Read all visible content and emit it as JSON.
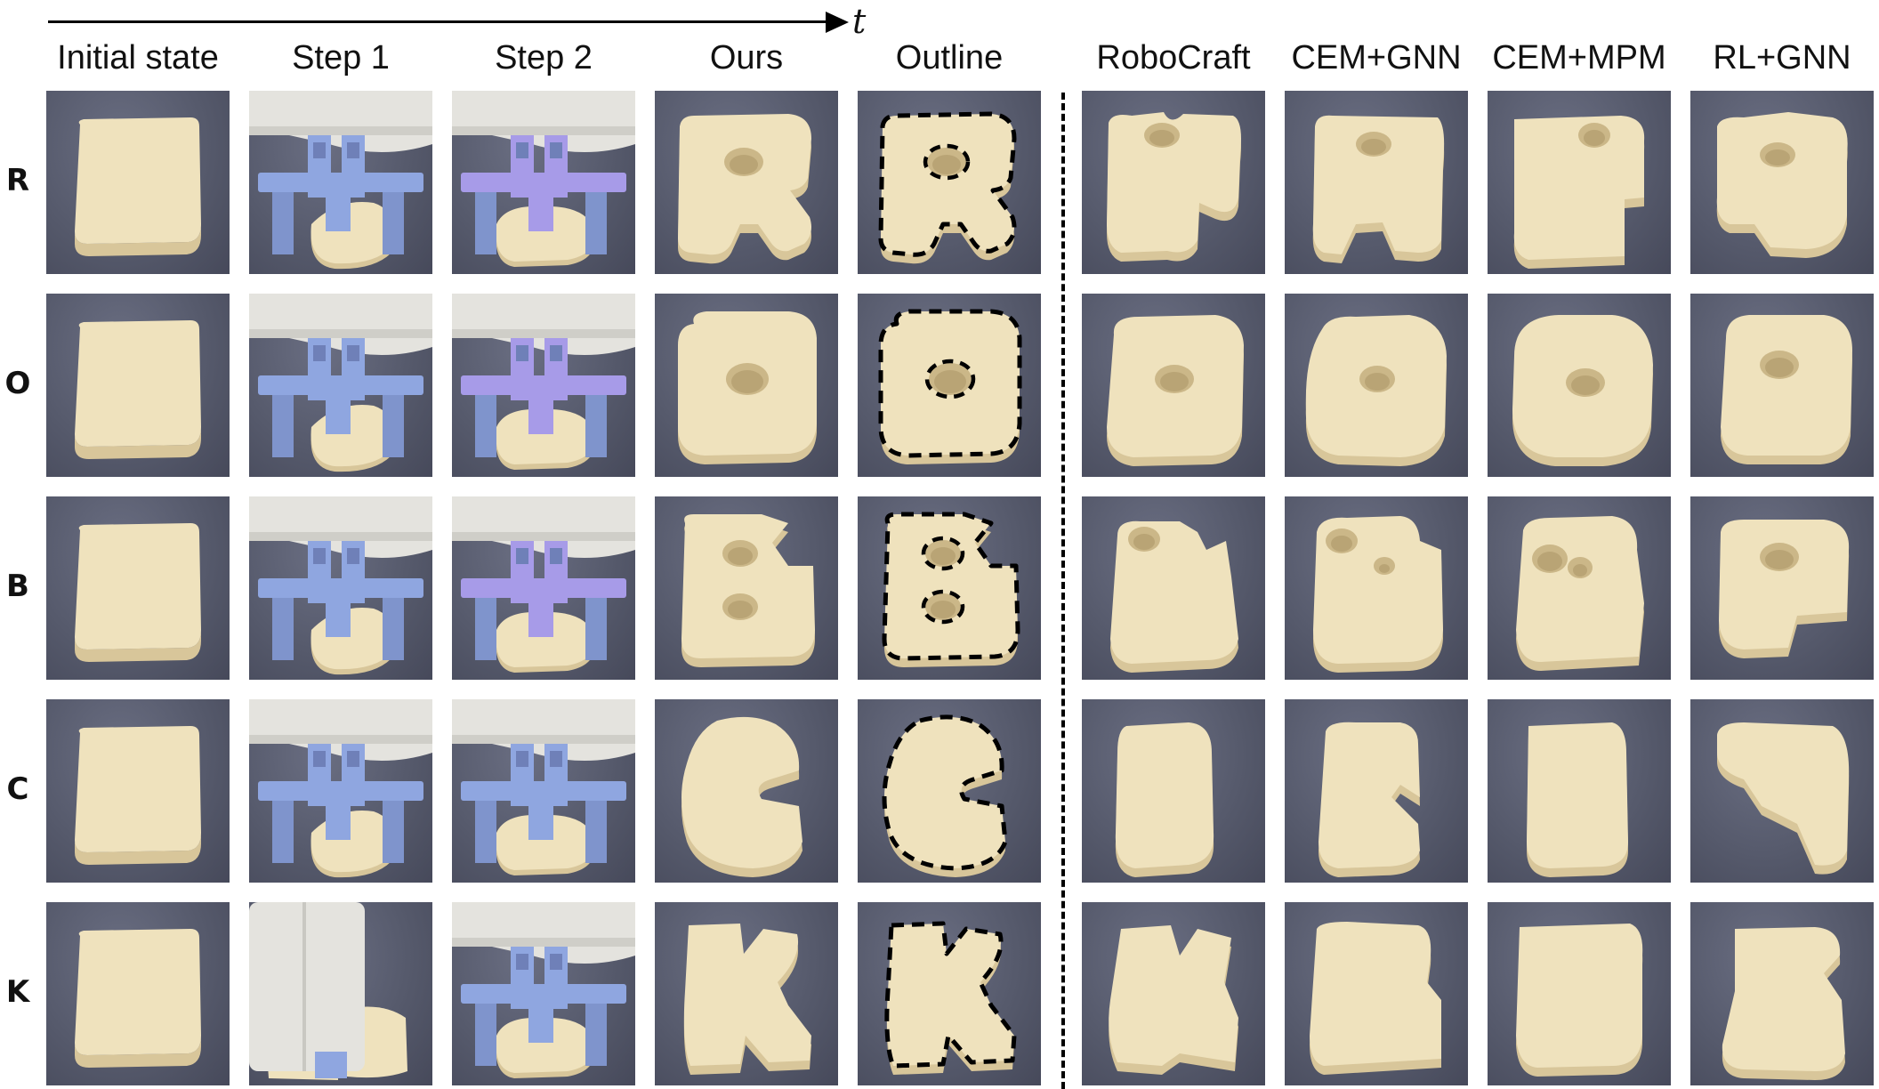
{
  "time_axis_label": "t",
  "columns": [
    {
      "id": "initial",
      "label": "Initial state"
    },
    {
      "id": "step1",
      "label": "Step 1"
    },
    {
      "id": "step2",
      "label": "Step 2"
    },
    {
      "id": "ours",
      "label": "Ours"
    },
    {
      "id": "outline",
      "label": "Outline"
    },
    {
      "id": "robocraft",
      "label": "RoboCraft"
    },
    {
      "id": "cem_gnn",
      "label": "CEM+GNN"
    },
    {
      "id": "cem_mpm",
      "label": "CEM+MPM"
    },
    {
      "id": "rl_gnn",
      "label": "RL+GNN"
    }
  ],
  "rows": [
    {
      "letter": "R"
    },
    {
      "letter": "O"
    },
    {
      "letter": "B"
    },
    {
      "letter": "C"
    },
    {
      "letter": "K"
    }
  ],
  "colors": {
    "background_gray": "#565a6c",
    "dough": "#efe2bd",
    "dough_shadow": "#d8c69a",
    "gripper_blue": "#8fa6e0",
    "gripper_purple": "#a79be8",
    "robot_white": "#e4e3de",
    "outline_stroke": "#000000"
  }
}
